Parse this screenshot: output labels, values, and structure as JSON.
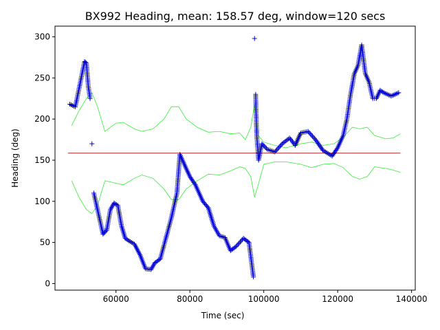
{
  "chart_data": {
    "type": "scatter",
    "title": "BX992 Heading, mean: 158.57 deg, window=120 secs",
    "xlabel": "Time (sec)",
    "ylabel": "Heading (deg)",
    "xlim": [
      43500,
      141000
    ],
    "ylim": [
      -8,
      313
    ],
    "x_ticks": [
      60000,
      80000,
      100000,
      120000,
      140000
    ],
    "x_tick_labels": [
      "60000",
      "80000",
      "100000",
      "120000",
      "140000"
    ],
    "y_ticks": [
      0,
      50,
      100,
      150,
      200,
      250,
      300
    ],
    "y_tick_labels": [
      "0",
      "50",
      "100",
      "150",
      "200",
      "250",
      "300"
    ],
    "grid": false,
    "series": [
      {
        "role": "heading",
        "color": "#0000cc",
        "marker": "+",
        "x": [
          47500,
          49000,
          50500,
          51500,
          52000,
          52500,
          53000,
          53500,
          54000,
          55000,
          56500,
          57500,
          58500,
          59500,
          60500,
          61500,
          62500,
          63500,
          65000,
          66500,
          68000,
          69500,
          70500,
          72000,
          73500,
          75000,
          76500,
          77300,
          78500,
          80000,
          81500,
          83500,
          85000,
          86500,
          88000,
          89500,
          91000,
          92500,
          94500,
          96000,
          97200,
          97500,
          97800,
          98100,
          98600,
          99500,
          101000,
          103000,
          105000,
          107000,
          108500,
          110000,
          112000,
          114000,
          116000,
          118500,
          120000,
          121500,
          122500,
          123500,
          124500,
          125500,
          126500,
          127500,
          128500,
          129500,
          130500,
          131500,
          132500,
          133500,
          134500,
          135500,
          136500
        ],
        "y": [
          218,
          215,
          248,
          270,
          268,
          240,
          225,
          170,
          110,
          90,
          60,
          65,
          90,
          98,
          95,
          70,
          55,
          52,
          48,
          35,
          18,
          17,
          25,
          30,
          55,
          80,
          110,
          157,
          145,
          130,
          120,
          100,
          92,
          70,
          58,
          56,
          40,
          45,
          55,
          50,
          8,
          298,
          230,
          180,
          150,
          170,
          163,
          160,
          170,
          177,
          168,
          183,
          185,
          175,
          162,
          155,
          165,
          180,
          200,
          230,
          255,
          265,
          290,
          255,
          245,
          225,
          225,
          235,
          232,
          230,
          228,
          230,
          232
        ]
      },
      {
        "role": "mean",
        "color": "#aa2222",
        "x": [
          47000,
          137000
        ],
        "y": [
          158.57,
          158.57
        ]
      },
      {
        "role": "upper-band",
        "color": "#33ee33",
        "x": [
          48000,
          50000,
          52000,
          53500,
          55000,
          57000,
          60000,
          62000,
          65000,
          67000,
          70000,
          73000,
          75000,
          77000,
          79000,
          82000,
          85000,
          88000,
          91000,
          93500,
          95000,
          96500,
          97500,
          98500,
          100000,
          103000,
          106000,
          110000,
          113000,
          116000,
          119000,
          121500,
          124000,
          126000,
          128000,
          130000,
          133000,
          135000,
          137000
        ],
        "y": [
          192,
          210,
          225,
          232,
          215,
          185,
          195,
          196,
          188,
          185,
          188,
          200,
          215,
          215,
          200,
          190,
          184,
          185,
          182,
          183,
          175,
          190,
          218,
          180,
          172,
          168,
          165,
          170,
          172,
          168,
          170,
          178,
          190,
          188,
          190,
          180,
          176,
          177,
          182
        ]
      },
      {
        "role": "lower-band",
        "color": "#33ee33",
        "x": [
          48000,
          50000,
          52000,
          53500,
          55000,
          57000,
          60000,
          62000,
          65000,
          67000,
          70000,
          73000,
          75000,
          77000,
          79000,
          82000,
          85000,
          88000,
          91000,
          93500,
          95000,
          96500,
          97500,
          98500,
          100000,
          103000,
          106000,
          110000,
          113000,
          116000,
          119000,
          121500,
          124000,
          126000,
          128000,
          130000,
          133000,
          135000,
          137000
        ],
        "y": [
          125,
          105,
          90,
          85,
          95,
          125,
          122,
          120,
          128,
          132,
          128,
          115,
          102,
          102,
          115,
          125,
          133,
          132,
          137,
          142,
          140,
          130,
          105,
          120,
          145,
          148,
          148,
          145,
          141,
          145,
          146,
          141,
          130,
          127,
          130,
          142,
          140,
          138,
          135
        ]
      }
    ]
  }
}
